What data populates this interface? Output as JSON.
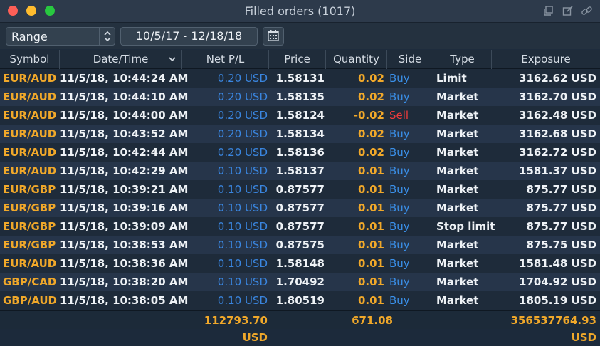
{
  "window": {
    "title": "Filled orders (1017)",
    "icons": [
      "duplicate-icon",
      "edit-icon",
      "link-icon"
    ]
  },
  "toolbar": {
    "range_select": "Range",
    "date_range": "10/5/17 - 12/18/18",
    "calendar_icon": "calendar-icon"
  },
  "columns": [
    "Symbol",
    "Date/Time",
    "Net P/L",
    "Price",
    "Quantity",
    "Side",
    "Type",
    "Exposure"
  ],
  "sort": {
    "column": "Date/Time",
    "direction": "descending"
  },
  "rows": [
    {
      "symbol": "EUR/AUD",
      "datetime": "11/5/18, 10:44:24 AM",
      "pl": "0.20 USD",
      "price": "1.58131",
      "quantity": "0.02",
      "side": "Buy",
      "type": "Limit",
      "exposure": "3162.62 USD"
    },
    {
      "symbol": "EUR/AUD",
      "datetime": "11/5/18, 10:44:10 AM",
      "pl": "0.20 USD",
      "price": "1.58135",
      "quantity": "0.02",
      "side": "Buy",
      "type": "Market",
      "exposure": "3162.70 USD"
    },
    {
      "symbol": "EUR/AUD",
      "datetime": "11/5/18, 10:44:00 AM",
      "pl": "0.20 USD",
      "price": "1.58124",
      "quantity": "-0.02",
      "side": "Sell",
      "type": "Market",
      "exposure": "3162.48 USD"
    },
    {
      "symbol": "EUR/AUD",
      "datetime": "11/5/18, 10:43:52 AM",
      "pl": "0.20 USD",
      "price": "1.58134",
      "quantity": "0.02",
      "side": "Buy",
      "type": "Market",
      "exposure": "3162.68 USD"
    },
    {
      "symbol": "EUR/AUD",
      "datetime": "11/5/18, 10:42:44 AM",
      "pl": "0.20 USD",
      "price": "1.58136",
      "quantity": "0.02",
      "side": "Buy",
      "type": "Market",
      "exposure": "3162.72 USD"
    },
    {
      "symbol": "EUR/AUD",
      "datetime": "11/5/18, 10:42:29 AM",
      "pl": "0.10 USD",
      "price": "1.58137",
      "quantity": "0.01",
      "side": "Buy",
      "type": "Market",
      "exposure": "1581.37 USD"
    },
    {
      "symbol": "EUR/GBP",
      "datetime": "11/5/18, 10:39:21 AM",
      "pl": "0.10 USD",
      "price": "0.87577",
      "quantity": "0.01",
      "side": "Buy",
      "type": "Market",
      "exposure": "875.77 USD"
    },
    {
      "symbol": "EUR/GBP",
      "datetime": "11/5/18, 10:39:16 AM",
      "pl": "0.10 USD",
      "price": "0.87577",
      "quantity": "0.01",
      "side": "Buy",
      "type": "Market",
      "exposure": "875.77 USD"
    },
    {
      "symbol": "EUR/GBP",
      "datetime": "11/5/18, 10:39:09 AM",
      "pl": "0.10 USD",
      "price": "0.87577",
      "quantity": "0.01",
      "side": "Buy",
      "type": "Stop limit",
      "exposure": "875.77 USD"
    },
    {
      "symbol": "EUR/GBP",
      "datetime": "11/5/18, 10:38:53 AM",
      "pl": "0.10 USD",
      "price": "0.87575",
      "quantity": "0.01",
      "side": "Buy",
      "type": "Market",
      "exposure": "875.75 USD"
    },
    {
      "symbol": "EUR/AUD",
      "datetime": "11/5/18, 10:38:36 AM",
      "pl": "0.10 USD",
      "price": "1.58148",
      "quantity": "0.01",
      "side": "Buy",
      "type": "Market",
      "exposure": "1581.48 USD"
    },
    {
      "symbol": "GBP/CAD",
      "datetime": "11/5/18, 10:38:20 AM",
      "pl": "0.10 USD",
      "price": "1.70492",
      "quantity": "0.01",
      "side": "Buy",
      "type": "Market",
      "exposure": "1704.92 USD"
    },
    {
      "symbol": "GBP/AUD",
      "datetime": "11/5/18, 10:38:05 AM",
      "pl": "0.10 USD",
      "price": "1.80519",
      "quantity": "0.01",
      "side": "Buy",
      "type": "Market",
      "exposure": "1805.19 USD"
    }
  ],
  "totals": {
    "pl": "112793.70 USD",
    "quantity": "671.08",
    "exposure": "356537764.93 USD"
  },
  "colors": {
    "symbol": "#f0a82a",
    "pl": "#3a86e0",
    "buy": "#3a8fe8",
    "sell": "#ef3b3b",
    "background": "#1e2c3d"
  }
}
